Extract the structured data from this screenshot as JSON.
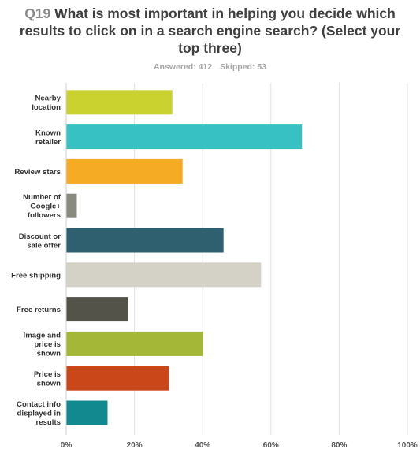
{
  "header": {
    "question_number": "Q19",
    "question_text": "What is most important in helping you decide which results to click on in a search engine search? (Select your top three)",
    "answered": "Answered: 412",
    "skipped": "Skipped: 53"
  },
  "chart_data": {
    "type": "bar",
    "orientation": "horizontal",
    "categories": [
      [
        "Nearby",
        "location"
      ],
      [
        "Known",
        "retailer"
      ],
      [
        "Review stars"
      ],
      [
        "Number of",
        "Google+",
        "followers"
      ],
      [
        "Discount or",
        "sale offer"
      ],
      [
        "Free shipping"
      ],
      [
        "Free returns"
      ],
      [
        "Image and",
        "price is",
        "shown"
      ],
      [
        "Price is",
        "shown"
      ],
      [
        "Contact info",
        "displayed in",
        "results"
      ]
    ],
    "values": [
      31,
      69,
      34,
      3,
      46,
      57,
      18,
      40,
      30,
      12
    ],
    "colors": [
      "#c9d22f",
      "#37c1c3",
      "#f5ab24",
      "#8a8b80",
      "#2e6070",
      "#d4d2c6",
      "#54534a",
      "#a5b737",
      "#c94719",
      "#11898e"
    ],
    "xlim": [
      0,
      100
    ],
    "x_ticks": [
      "0%",
      "20%",
      "40%",
      "60%",
      "80%",
      "100%"
    ],
    "x_tick_values": [
      0,
      20,
      40,
      60,
      80,
      100
    ],
    "grid": true,
    "legend": "none"
  }
}
